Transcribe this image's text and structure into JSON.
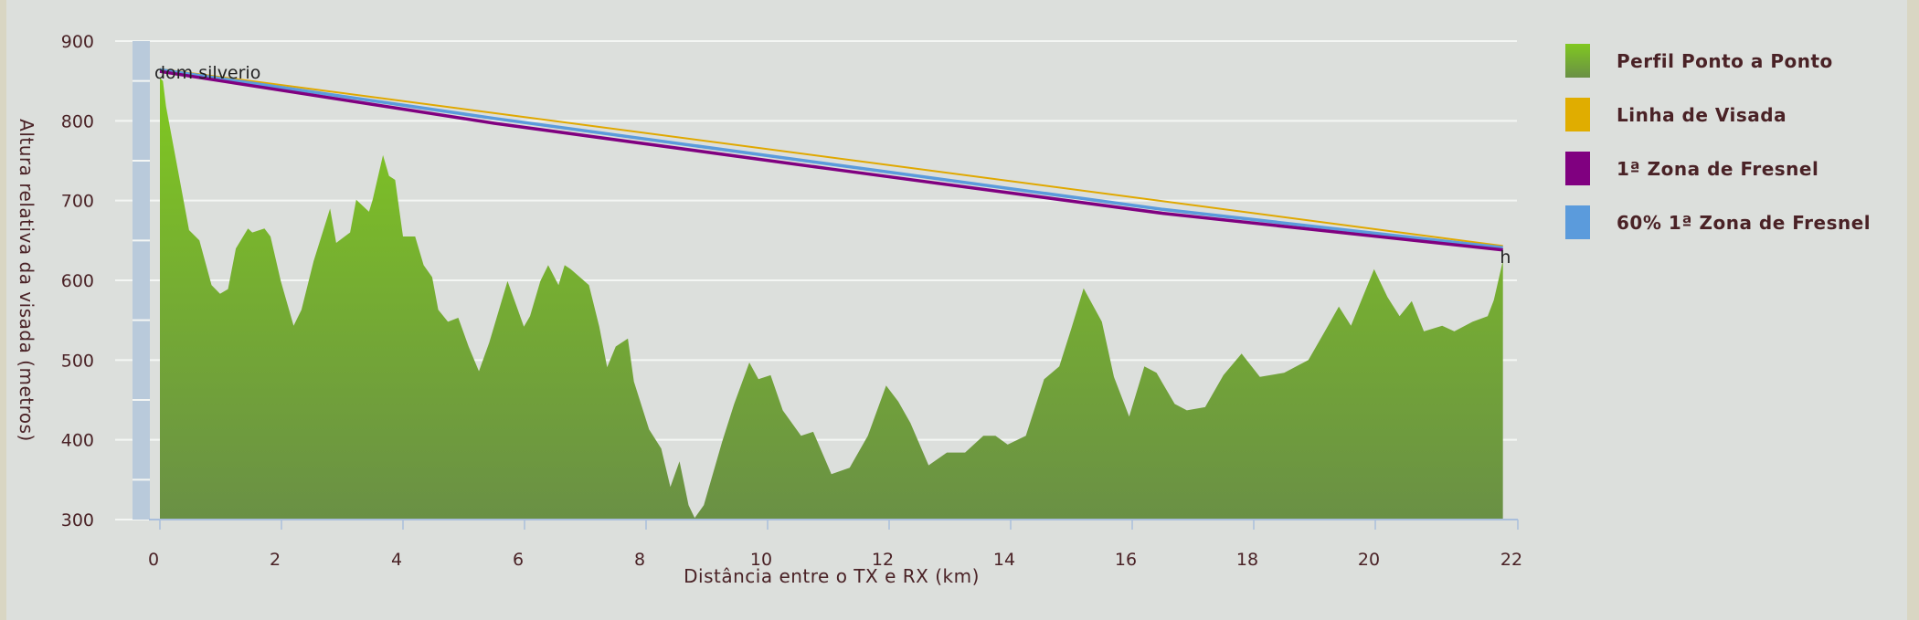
{
  "chart_data": {
    "type": "area",
    "title": "",
    "xlabel": "Distância entre o TX e RX (km)",
    "ylabel": "Altura relativa da visada (metros)",
    "xlim": [
      -0.35,
      22.3
    ],
    "ylim": [
      300,
      900
    ],
    "xticks": [
      0,
      2,
      4,
      6,
      8,
      10,
      12,
      14,
      16,
      18,
      20,
      22
    ],
    "yticks": [
      300,
      400,
      500,
      600,
      700,
      800,
      900
    ],
    "grid": true,
    "legend_position": "right",
    "annotations": {
      "start_label": "dom silverio",
      "end_label": "h"
    },
    "series": [
      {
        "name": "Perfil Ponto a Ponto",
        "color": "#6a9a3c",
        "type": "area",
        "x": [
          0,
          0.05,
          0.1,
          0.3,
          0.48,
          0.65,
          0.85,
          0.99,
          1.12,
          1.25,
          1.45,
          1.52,
          1.72,
          1.82,
          1.99,
          2.2,
          2.33,
          2.53,
          2.8,
          2.9,
          3.13,
          3.23,
          3.44,
          3.5,
          3.67,
          3.77,
          3.87,
          4.0,
          4.2,
          4.34,
          4.48,
          4.58,
          4.74,
          4.91,
          5.08,
          5.25,
          5.42,
          5.72,
          5.89,
          5.99,
          6.09,
          6.26,
          6.39,
          6.56,
          6.66,
          6.76,
          7.06,
          7.23,
          7.36,
          7.5,
          7.7,
          7.8,
          8.05,
          8.25,
          8.4,
          8.55,
          8.7,
          8.8,
          8.95,
          9.25,
          9.45,
          9.7,
          9.85,
          10.05,
          10.25,
          10.55,
          10.75,
          11.05,
          11.35,
          11.65,
          11.95,
          12.15,
          12.35,
          12.65,
          12.95,
          13.25,
          13.55,
          13.75,
          13.95,
          14.25,
          14.55,
          14.8,
          15.0,
          15.2,
          15.5,
          15.7,
          15.95,
          16.2,
          16.4,
          16.7,
          16.9,
          17.2,
          17.5,
          17.8,
          18.1,
          18.5,
          18.9,
          19.2,
          19.4,
          19.6,
          19.98,
          20.2,
          20.4,
          20.6,
          20.8,
          21.1,
          21.3,
          21.6,
          21.85,
          21.95,
          22.1
        ],
        "y": [
          854,
          850,
          818,
          737,
          663,
          650,
          594,
          583,
          589,
          640,
          665,
          660,
          665,
          655,
          599,
          543,
          563,
          624,
          690,
          647,
          660,
          701,
          686,
          701,
          757,
          731,
          726,
          655,
          655,
          619,
          604,
          563,
          548,
          553,
          517,
          486,
          522,
          599,
          563,
          542,
          555,
          599,
          619,
          594,
          619,
          614,
          594,
          542,
          491,
          517,
          527,
          473,
          413,
          389,
          341,
          373,
          318,
          302,
          318,
          397,
          445,
          497,
          476,
          481,
          437,
          405,
          410,
          357,
          365,
          405,
          468,
          448,
          421,
          368,
          384,
          384,
          405,
          405,
          394,
          405,
          476,
          492,
          540,
          590,
          548,
          479,
          429,
          492,
          484,
          445,
          437,
          441,
          481,
          508,
          479,
          484,
          500,
          540,
          567,
          543,
          614,
          579,
          555,
          574,
          536,
          543,
          536,
          548,
          555,
          575,
          625
        ]
      },
      {
        "name": "Linha de Visada",
        "color": "#e0a800",
        "type": "line",
        "x": [
          0,
          22.1
        ],
        "y": [
          865,
          643
        ]
      },
      {
        "name": "1ª Zona de Fresnel",
        "color": "#800080",
        "type": "line",
        "x": [
          0,
          5.5,
          11,
          16.5,
          22.1
        ],
        "y": [
          862,
          797,
          740,
          684,
          638
        ]
      },
      {
        "name": "60% 1ª Zona de Fresnel",
        "color": "#5b9bdc",
        "type": "line",
        "x": [
          0,
          5.5,
          11,
          16.5,
          22.1
        ],
        "y": [
          864,
          803,
          746,
          689,
          641
        ]
      }
    ]
  }
}
